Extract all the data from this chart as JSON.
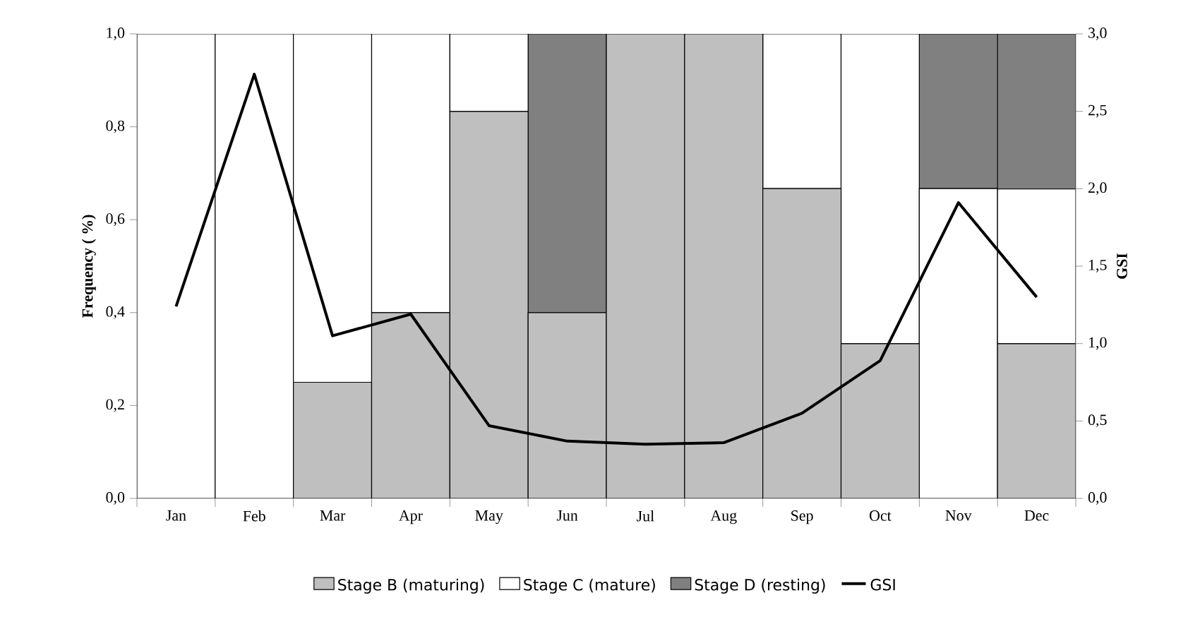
{
  "chart_data": {
    "type": "bar",
    "stacked": true,
    "legend": "bottom",
    "categories": [
      "Jan",
      "Feb",
      "Mar",
      "Apr",
      "May",
      "Jun",
      "Jul",
      "Aug",
      "Sep",
      "Oct",
      "Nov",
      "Dec"
    ],
    "ylabel": "Frequency ( %)",
    "y2label": "GSI",
    "ylim": [
      0,
      1
    ],
    "yticks": [
      {
        "value": 0,
        "label": "0,0"
      },
      {
        "value": 0.2,
        "label": "0,2"
      },
      {
        "value": 0.4,
        "label": "0,4"
      },
      {
        "value": 0.6,
        "label": "0,6"
      },
      {
        "value": 0.8,
        "label": "0,8"
      },
      {
        "value": 1,
        "label": "1,0"
      }
    ],
    "y2lim": [
      0,
      3
    ],
    "y2ticks": [
      {
        "value": 0,
        "label": "0,0"
      },
      {
        "value": 0.5,
        "label": "0,5"
      },
      {
        "value": 1,
        "label": "1,0"
      },
      {
        "value": 1.5,
        "label": "1,5"
      },
      {
        "value": 2,
        "label": "2,0"
      },
      {
        "value": 2.5,
        "label": "2,5"
      },
      {
        "value": 3,
        "label": "3,0"
      }
    ],
    "series": [
      {
        "name": "Stage B (maturing)",
        "color": "#bfbfbf",
        "values": [
          0,
          0,
          0.25,
          0.4,
          0.833,
          0.4,
          1,
          1,
          0.667,
          0.333,
          0,
          0.333
        ]
      },
      {
        "name": "Stage C (mature)",
        "color": "#ffffff",
        "values": [
          1,
          1,
          0.75,
          0.6,
          0.167,
          0,
          0,
          0,
          0.333,
          0.667,
          0.667,
          0.333
        ]
      },
      {
        "name": "Stage D (resting)",
        "color": "#808080",
        "values": [
          0,
          0,
          0,
          0,
          0,
          0.6,
          0,
          0,
          0,
          0,
          0.333,
          0.334
        ]
      },
      {
        "name": "GSI",
        "type": "line",
        "axis": "y2",
        "color": "#000000",
        "values": [
          1.24,
          2.74,
          1.05,
          1.19,
          0.47,
          0.37,
          0.35,
          0.36,
          0.55,
          0.89,
          1.91,
          1.3
        ]
      }
    ]
  }
}
